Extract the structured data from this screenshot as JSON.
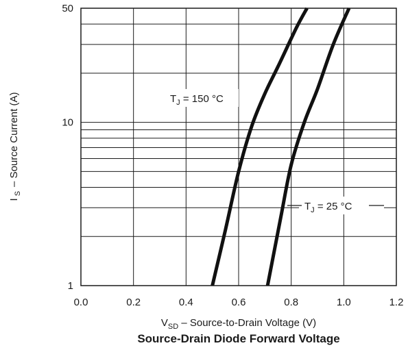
{
  "chart_data": {
    "type": "line",
    "title": "Source-Drain Diode Forward Voltage",
    "xlabel": {
      "main": "V",
      "sub": "SD",
      "rest": " –  Source-to-Drain Voltage (V)"
    },
    "ylabel": {
      "main": "I",
      "sub": "S",
      "rest": "–  Source Current (A)"
    },
    "xlim": [
      0.0,
      1.2
    ],
    "ylim": [
      1,
      50
    ],
    "yscale": "log",
    "grid": true,
    "x_ticks": [
      0.0,
      0.2,
      0.4,
      0.6,
      0.8,
      1.0,
      1.2
    ],
    "x_tick_labels": [
      "0.0",
      "0.2",
      "0.4",
      "0.6",
      "0.8",
      "1.0",
      "1.2"
    ],
    "y_tick_labels": [
      {
        "value": 1,
        "label": "1"
      },
      {
        "value": 10,
        "label": "10"
      },
      {
        "value": 50,
        "label": "50"
      }
    ],
    "y_grid": [
      2,
      3,
      4,
      5,
      6,
      7,
      8,
      9,
      10,
      20,
      30,
      40
    ],
    "series": [
      {
        "name": "TJ = 150 °C",
        "x": [
          0.5,
          0.55,
          0.6,
          0.65,
          0.7,
          0.75,
          0.82,
          0.86
        ],
        "y": [
          1.0,
          2.2,
          5.0,
          9.5,
          15.0,
          22.0,
          38.0,
          50.0
        ]
      },
      {
        "name": "TJ = 25 °C",
        "x": [
          0.71,
          0.76,
          0.8,
          0.85,
          0.9,
          0.96,
          1.02
        ],
        "y": [
          1.0,
          2.6,
          5.5,
          10.0,
          16.0,
          30.0,
          50.0
        ]
      }
    ],
    "annotations": [
      {
        "main": "T",
        "sub": "J",
        "rest": " = 150 °C"
      },
      {
        "main": "T",
        "sub": "J",
        "rest": " = 25 °C"
      }
    ]
  }
}
